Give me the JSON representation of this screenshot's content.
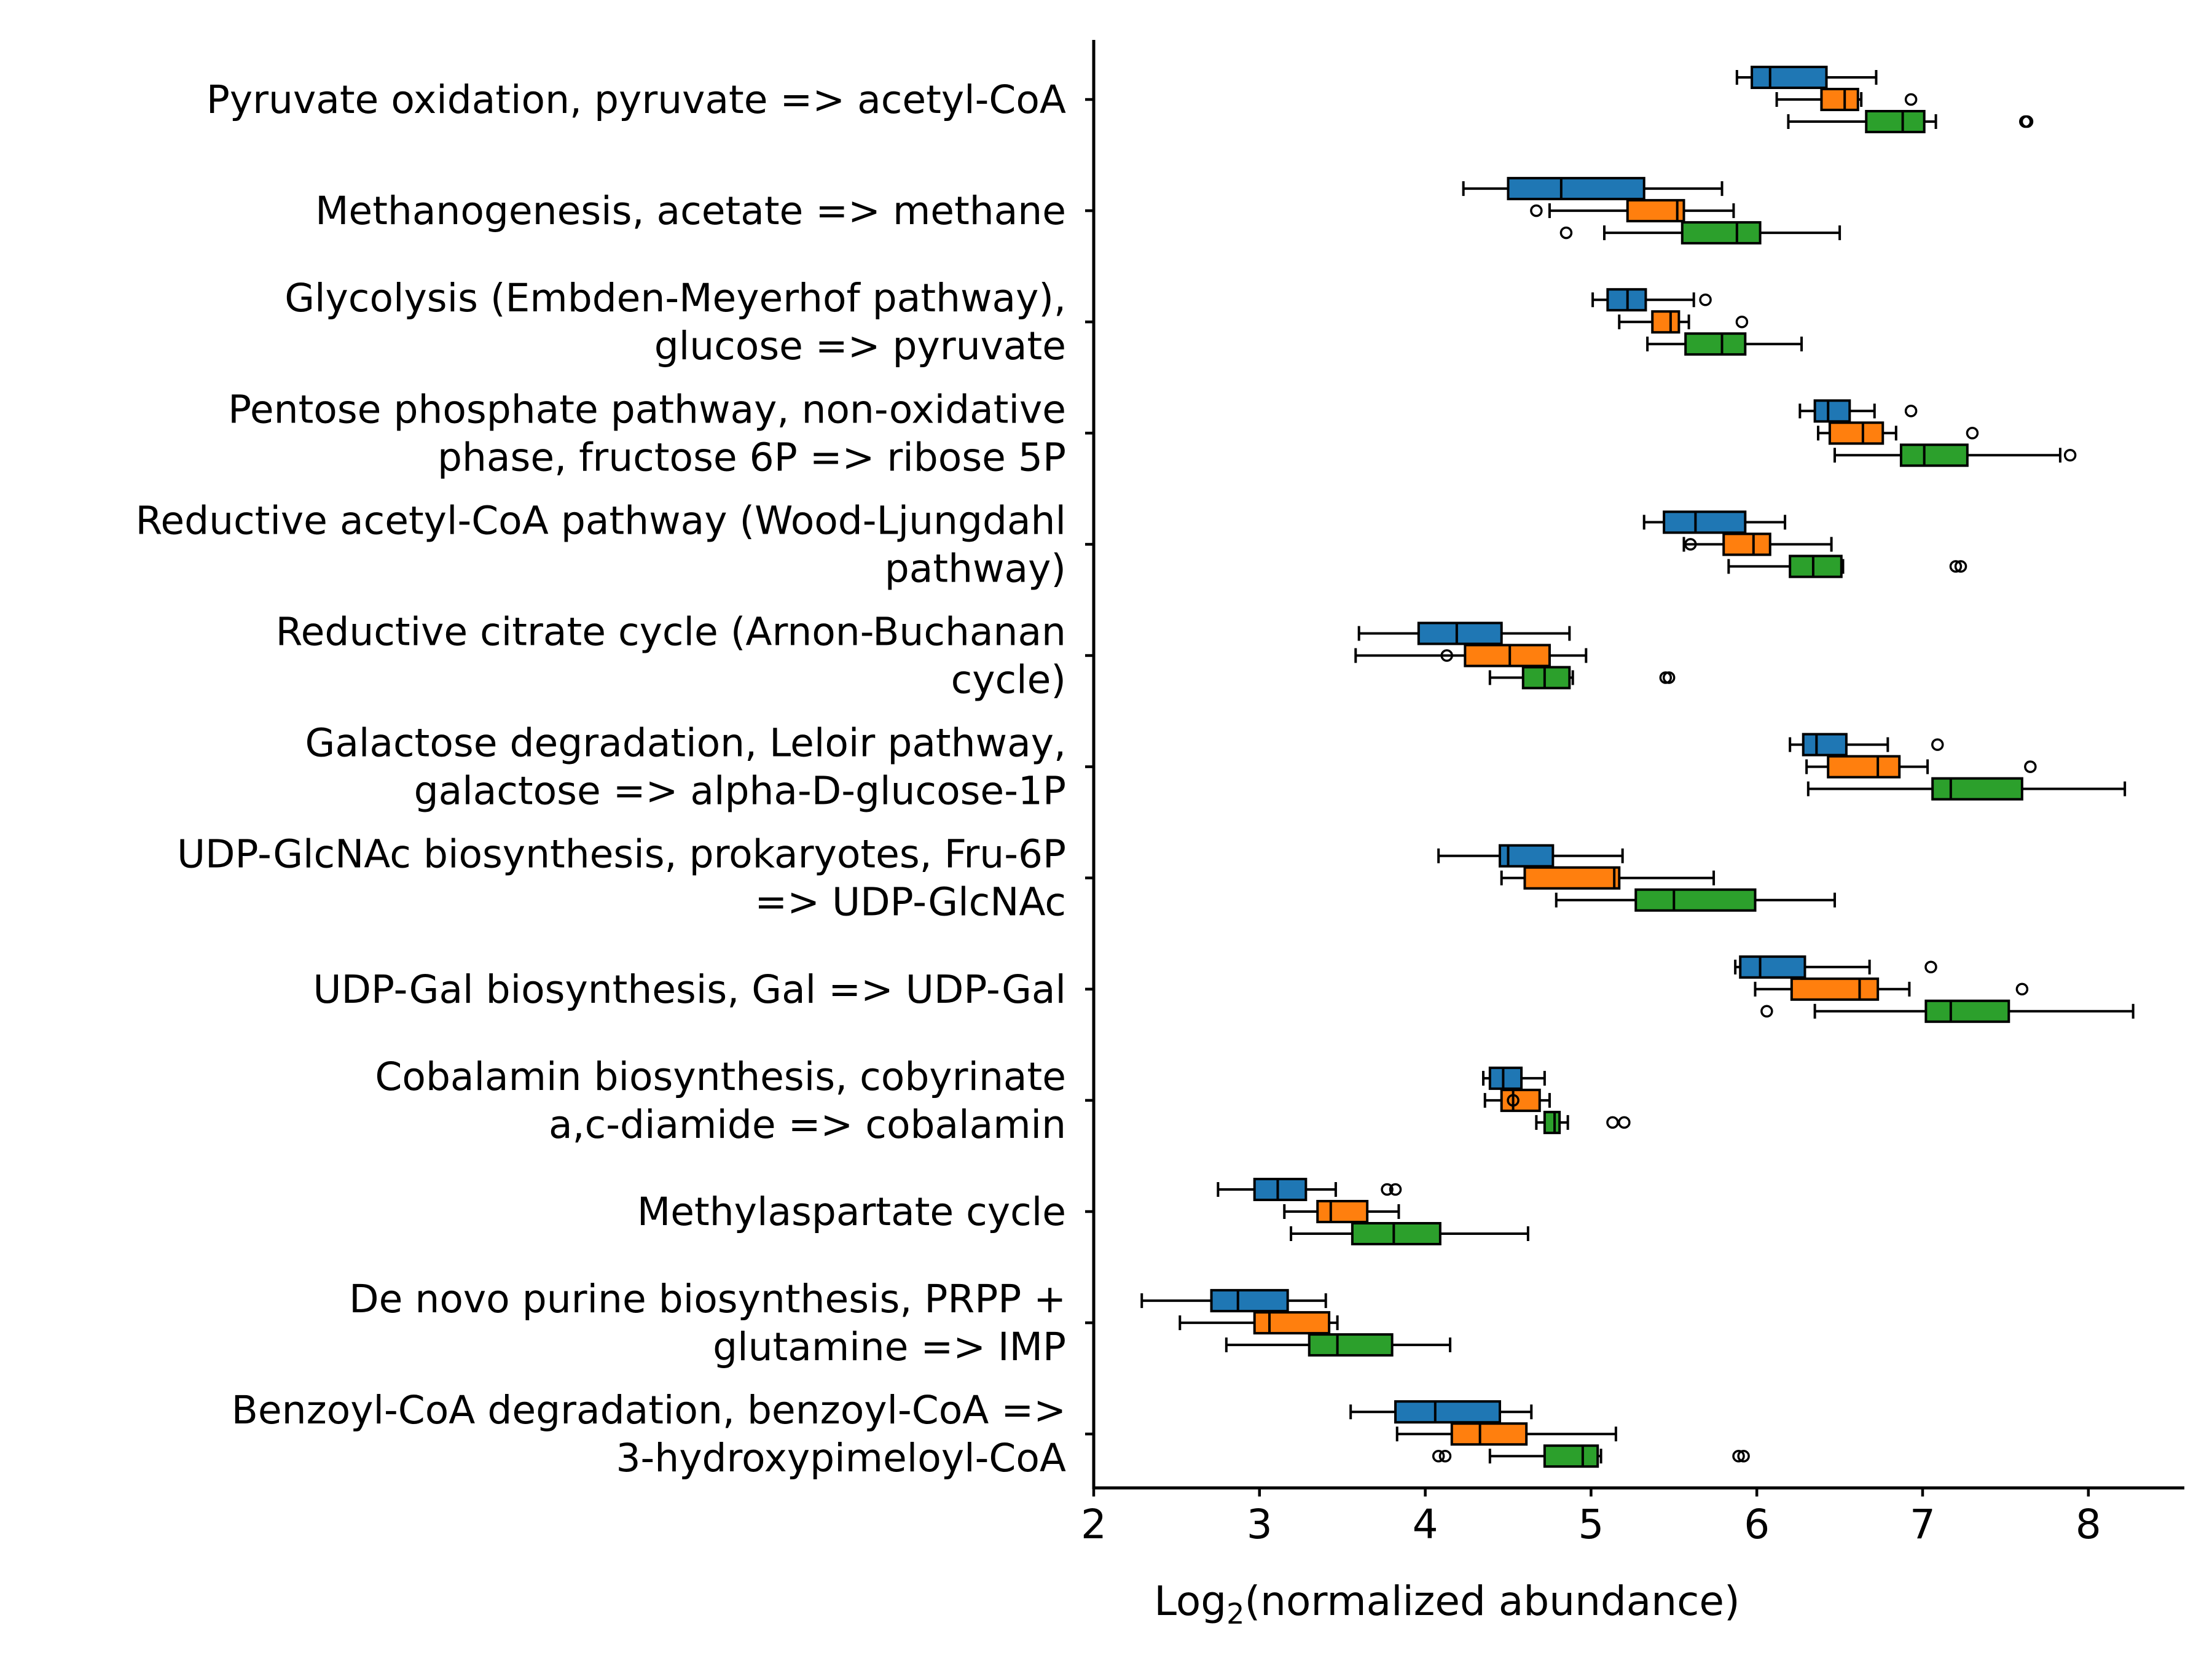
{
  "chart_data": {
    "type": "boxplot",
    "orientation": "horizontal",
    "xlabel": "Log2(normalized abundance)",
    "xlabel_parts": {
      "prefix": "Log",
      "subscript": "2",
      "suffix": "(normalized abundance)"
    },
    "xlim": [
      2.0,
      8.6
    ],
    "xticks": [
      2,
      3,
      4,
      5,
      6,
      7,
      8
    ],
    "grid": false,
    "legend": "none",
    "series": [
      {
        "color": "#1f77b4"
      },
      {
        "color": "#ff7f0e"
      },
      {
        "color": "#2ca02c"
      }
    ],
    "categories": [
      {
        "label": [
          "Pyruvate oxidation, pyruvate => acetyl-CoA"
        ],
        "boxes": [
          {
            "whislo": 5.88,
            "q1": 5.97,
            "med": 6.08,
            "q3": 6.42,
            "whishi": 6.72,
            "fliers": []
          },
          {
            "whislo": 6.12,
            "q1": 6.39,
            "med": 6.53,
            "q3": 6.61,
            "whishi": 6.63,
            "fliers": [
              6.93
            ]
          },
          {
            "whislo": 6.19,
            "q1": 6.66,
            "med": 6.88,
            "q3": 7.01,
            "whishi": 7.08,
            "fliers": [
              7.62,
              7.63
            ]
          }
        ]
      },
      {
        "label": [
          "Methanogenesis, acetate => methane"
        ],
        "boxes": [
          {
            "whislo": 4.23,
            "q1": 4.5,
            "med": 4.82,
            "q3": 5.32,
            "whishi": 5.79,
            "fliers": []
          },
          {
            "whislo": 4.75,
            "q1": 5.22,
            "med": 5.52,
            "q3": 5.56,
            "whishi": 5.86,
            "fliers": [
              4.67
            ]
          },
          {
            "whislo": 5.08,
            "q1": 5.55,
            "med": 5.88,
            "q3": 6.02,
            "whishi": 6.5,
            "fliers": [
              4.85
            ]
          }
        ]
      },
      {
        "label": [
          "Glycolysis (Embden-Meyerhof pathway),",
          "glucose => pyruvate"
        ],
        "boxes": [
          {
            "whislo": 5.01,
            "q1": 5.1,
            "med": 5.22,
            "q3": 5.33,
            "whishi": 5.62,
            "fliers": [
              5.69
            ]
          },
          {
            "whislo": 5.17,
            "q1": 5.37,
            "med": 5.48,
            "q3": 5.53,
            "whishi": 5.59,
            "fliers": [
              5.91
            ]
          },
          {
            "whislo": 5.34,
            "q1": 5.57,
            "med": 5.79,
            "q3": 5.93,
            "whishi": 6.27,
            "fliers": []
          }
        ]
      },
      {
        "label": [
          "Pentose phosphate pathway, non-oxidative",
          "phase, fructose 6P => ribose 5P"
        ],
        "boxes": [
          {
            "whislo": 6.26,
            "q1": 6.35,
            "med": 6.43,
            "q3": 6.56,
            "whishi": 6.71,
            "fliers": [
              6.93
            ]
          },
          {
            "whislo": 6.37,
            "q1": 6.44,
            "med": 6.64,
            "q3": 6.76,
            "whishi": 6.84,
            "fliers": [
              7.3
            ]
          },
          {
            "whislo": 6.47,
            "q1": 6.87,
            "med": 7.01,
            "q3": 7.27,
            "whishi": 7.83,
            "fliers": [
              7.89
            ]
          }
        ]
      },
      {
        "label": [
          "Reductive acetyl-CoA pathway (Wood-Ljungdahl",
          "pathway)"
        ],
        "boxes": [
          {
            "whislo": 5.32,
            "q1": 5.44,
            "med": 5.63,
            "q3": 5.93,
            "whishi": 6.17,
            "fliers": []
          },
          {
            "whislo": 5.56,
            "q1": 5.8,
            "med": 5.98,
            "q3": 6.08,
            "whishi": 6.45,
            "fliers": [
              5.6
            ]
          },
          {
            "whislo": 5.83,
            "q1": 6.2,
            "med": 6.34,
            "q3": 6.51,
            "whishi": 6.52,
            "fliers": [
              7.2,
              7.23
            ]
          }
        ]
      },
      {
        "label": [
          "Reductive citrate cycle (Arnon-Buchanan",
          "cycle)"
        ],
        "boxes": [
          {
            "whislo": 3.6,
            "q1": 3.96,
            "med": 4.19,
            "q3": 4.46,
            "whishi": 4.87,
            "fliers": []
          },
          {
            "whislo": 3.58,
            "q1": 4.24,
            "med": 4.51,
            "q3": 4.75,
            "whishi": 4.97,
            "fliers": [
              4.13
            ]
          },
          {
            "whislo": 4.39,
            "q1": 4.59,
            "med": 4.72,
            "q3": 4.87,
            "whishi": 4.89,
            "fliers": [
              5.45,
              5.47
            ]
          }
        ]
      },
      {
        "label": [
          "Galactose degradation, Leloir pathway,",
          "galactose => alpha-D-glucose-1P"
        ],
        "boxes": [
          {
            "whislo": 6.2,
            "q1": 6.28,
            "med": 6.36,
            "q3": 6.54,
            "whishi": 6.79,
            "fliers": [
              7.09
            ]
          },
          {
            "whislo": 6.3,
            "q1": 6.43,
            "med": 6.73,
            "q3": 6.86,
            "whishi": 7.03,
            "fliers": [
              7.65
            ]
          },
          {
            "whislo": 6.31,
            "q1": 7.06,
            "med": 7.17,
            "q3": 7.6,
            "whishi": 8.22,
            "fliers": []
          }
        ]
      },
      {
        "label": [
          "UDP-GlcNAc biosynthesis, prokaryotes, Fru-6P",
          "=> UDP-GlcNAc"
        ],
        "boxes": [
          {
            "whislo": 4.08,
            "q1": 4.45,
            "med": 4.5,
            "q3": 4.77,
            "whishi": 5.19,
            "fliers": []
          },
          {
            "whislo": 4.46,
            "q1": 4.6,
            "med": 5.14,
            "q3": 5.17,
            "whishi": 5.74,
            "fliers": []
          },
          {
            "whislo": 4.79,
            "q1": 5.27,
            "med": 5.5,
            "q3": 5.99,
            "whishi": 6.47,
            "fliers": []
          }
        ]
      },
      {
        "label": [
          "UDP-Gal biosynthesis, Gal => UDP-Gal"
        ],
        "boxes": [
          {
            "whislo": 5.87,
            "q1": 5.9,
            "med": 6.02,
            "q3": 6.29,
            "whishi": 6.68,
            "fliers": [
              7.05
            ]
          },
          {
            "whislo": 5.99,
            "q1": 6.21,
            "med": 6.62,
            "q3": 6.73,
            "whishi": 6.92,
            "fliers": [
              7.6
            ]
          },
          {
            "whislo": 6.35,
            "q1": 7.02,
            "med": 7.17,
            "q3": 7.52,
            "whishi": 8.27,
            "fliers": [
              6.06
            ]
          }
        ]
      },
      {
        "label": [
          "Cobalamin biosynthesis, cobyrinate",
          "a,c-diamide => cobalamin"
        ],
        "boxes": [
          {
            "whislo": 4.35,
            "q1": 4.39,
            "med": 4.47,
            "q3": 4.58,
            "whishi": 4.72,
            "fliers": []
          },
          {
            "whislo": 4.36,
            "q1": 4.46,
            "med": 4.53,
            "q3": 4.69,
            "whishi": 4.75,
            "fliers": [
              4.53
            ]
          },
          {
            "whislo": 4.67,
            "q1": 4.72,
            "med": 4.78,
            "q3": 4.81,
            "whishi": 4.86,
            "fliers": [
              5.13,
              5.2
            ]
          }
        ]
      },
      {
        "label": [
          "Methylaspartate cycle"
        ],
        "boxes": [
          {
            "whislo": 2.75,
            "q1": 2.97,
            "med": 3.11,
            "q3": 3.28,
            "whishi": 3.46,
            "fliers": [
              3.77,
              3.82
            ]
          },
          {
            "whislo": 3.15,
            "q1": 3.35,
            "med": 3.43,
            "q3": 3.65,
            "whishi": 3.84,
            "fliers": []
          },
          {
            "whislo": 3.19,
            "q1": 3.56,
            "med": 3.81,
            "q3": 4.09,
            "whishi": 4.62,
            "fliers": []
          }
        ]
      },
      {
        "label": [
          "De novo purine biosynthesis, PRPP +",
          "glutamine => IMP"
        ],
        "boxes": [
          {
            "whislo": 2.29,
            "q1": 2.71,
            "med": 2.87,
            "q3": 3.17,
            "whishi": 3.4,
            "fliers": []
          },
          {
            "whislo": 2.52,
            "q1": 2.97,
            "med": 3.06,
            "q3": 3.42,
            "whishi": 3.47,
            "fliers": []
          },
          {
            "whislo": 2.8,
            "q1": 3.3,
            "med": 3.47,
            "q3": 3.8,
            "whishi": 4.15,
            "fliers": []
          }
        ]
      },
      {
        "label": [
          "Benzoyl-CoA degradation, benzoyl-CoA =>",
          "3-hydroxypimeloyl-CoA"
        ],
        "boxes": [
          {
            "whislo": 3.55,
            "q1": 3.82,
            "med": 4.06,
            "q3": 4.45,
            "whishi": 4.64,
            "fliers": []
          },
          {
            "whislo": 3.83,
            "q1": 4.16,
            "med": 4.33,
            "q3": 4.61,
            "whishi": 5.15,
            "fliers": []
          },
          {
            "whislo": 4.39,
            "q1": 4.72,
            "med": 4.95,
            "q3": 5.04,
            "whishi": 5.06,
            "fliers": [
              4.08,
              4.12,
              5.89,
              5.92
            ]
          }
        ]
      }
    ]
  }
}
